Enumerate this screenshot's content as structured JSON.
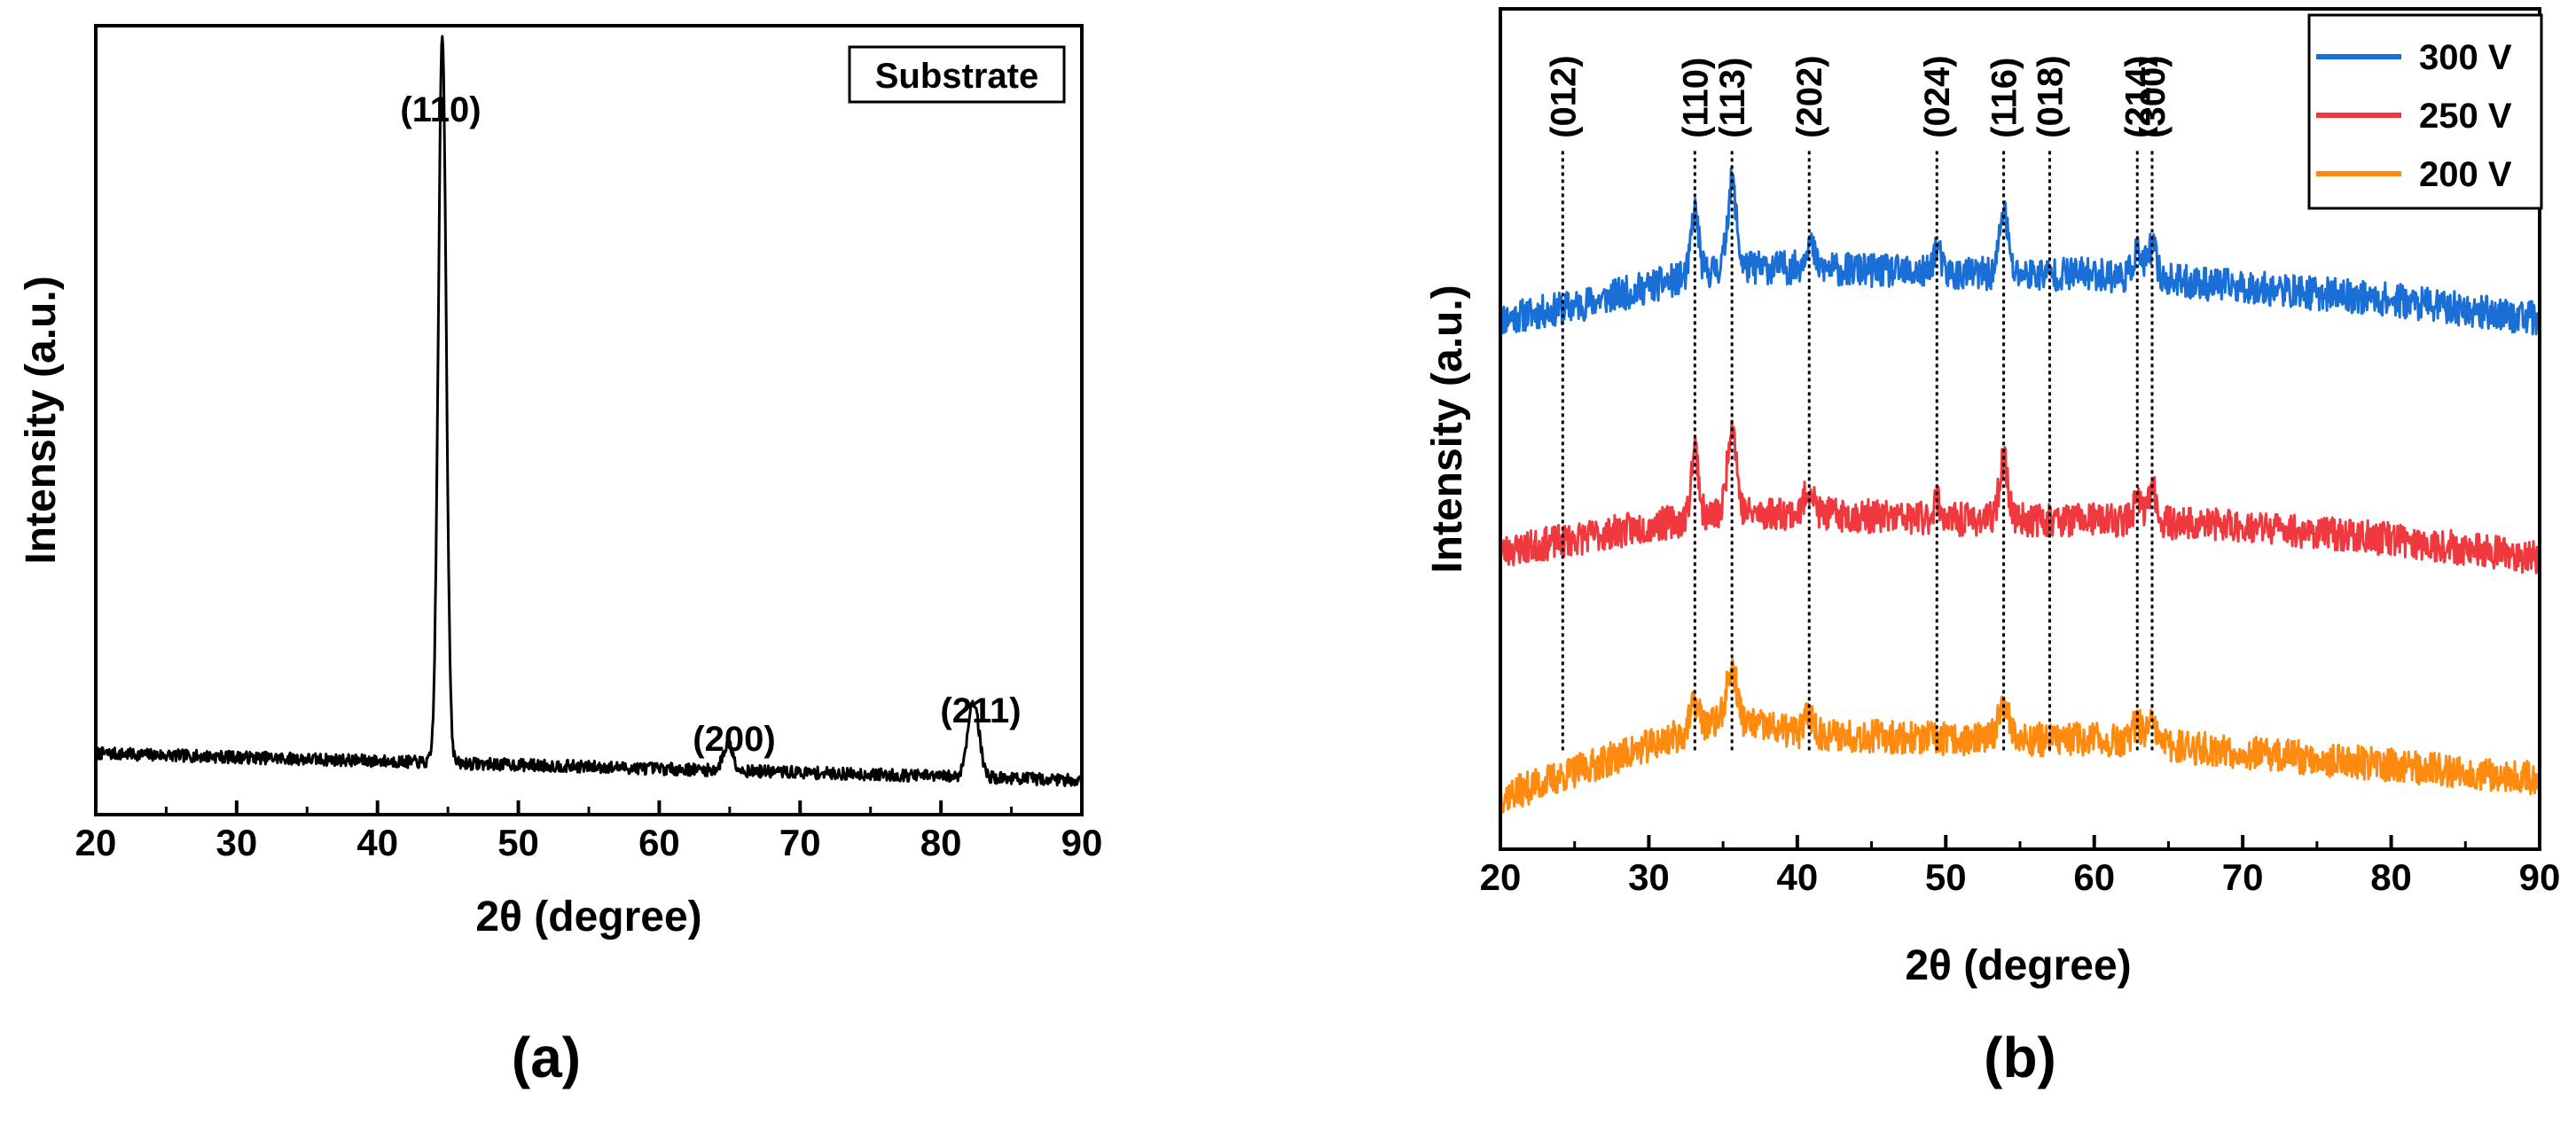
{
  "chart_data": [
    {
      "type": "line",
      "panel_label": "(a)",
      "xlabel": "2θ (degree)",
      "ylabel": "Intensity (a.u.)",
      "xlim": [
        20,
        90
      ],
      "xticks": [
        20,
        30,
        40,
        50,
        60,
        70,
        80,
        90
      ],
      "yticks": [],
      "grid": false,
      "legend": {
        "entries": [
          "Substrate"
        ],
        "position": "top-right"
      },
      "series": [
        {
          "name": "Substrate",
          "color": "#000000",
          "baseline": {
            "x": [
              20,
              30,
              40,
              50,
              60,
              70,
              80,
              90
            ],
            "y": [
              5,
              4.5,
              4,
              3.5,
              3,
              2.5,
              2,
              1.5
            ]
          },
          "noise": 0.8,
          "peaks": [
            {
              "x": 44.6,
              "height": 95,
              "width": 0.28
            },
            {
              "x": 64.9,
              "height": 3.5,
              "width": 0.35
            },
            {
              "x": 82.3,
              "height": 10,
              "width": 0.4
            }
          ],
          "ylim": [
            -3,
            100
          ]
        }
      ],
      "annotations": [
        {
          "text": "(110)",
          "x": 44.6,
          "y": 105
        },
        {
          "text": "(200)",
          "x": 64.9,
          "y": 12
        },
        {
          "text": "(211)",
          "x": 82.3,
          "y": 19
        }
      ]
    },
    {
      "type": "line",
      "panel_label": "(b)",
      "xlabel": "2θ (degree)",
      "ylabel": "Intensity (a.u.)",
      "xlim": [
        20,
        90
      ],
      "xticks": [
        20,
        30,
        40,
        50,
        60,
        70,
        80,
        90
      ],
      "yticks": [],
      "ylim": [
        0,
        130
      ],
      "grid": false,
      "legend": {
        "entries": [
          "300 V",
          "250 V",
          "200 V"
        ],
        "position": "top-right"
      },
      "series": [
        {
          "name": "300 V",
          "color": "#1a6fd6",
          "offset": 82,
          "baseline": {
            "x": [
              20,
              25,
              30,
              35,
              40,
              50,
              60,
              70,
              80,
              90
            ],
            "y": [
              0,
              2,
              5,
              8,
              8,
              7,
              7,
              5,
              3,
              0
            ]
          },
          "noise": 2.6,
          "peaks": [
            {
              "x": 33.1,
              "height": 10,
              "width": 0.25
            },
            {
              "x": 35.6,
              "height": 13,
              "width": 0.3
            },
            {
              "x": 40.8,
              "height": 4,
              "width": 0.3
            },
            {
              "x": 49.4,
              "height": 4,
              "width": 0.25
            },
            {
              "x": 53.9,
              "height": 10,
              "width": 0.28
            },
            {
              "x": 62.9,
              "height": 4,
              "width": 0.3
            },
            {
              "x": 63.9,
              "height": 5,
              "width": 0.3
            }
          ]
        },
        {
          "name": "250 V",
          "color": "#f0393f",
          "offset": 46,
          "baseline": {
            "x": [
              20,
              25,
              30,
              35,
              40,
              50,
              60,
              70,
              80,
              90
            ],
            "y": [
              0,
              2,
              4,
              6,
              6,
              5,
              5,
              4,
              2,
              -1
            ]
          },
          "noise": 2.6,
          "peaks": [
            {
              "x": 33.1,
              "height": 11,
              "width": 0.25
            },
            {
              "x": 35.6,
              "height": 14,
              "width": 0.3
            },
            {
              "x": 40.8,
              "height": 4,
              "width": 0.3
            },
            {
              "x": 49.4,
              "height": 3,
              "width": 0.25
            },
            {
              "x": 53.9,
              "height": 9,
              "width": 0.3
            },
            {
              "x": 62.9,
              "height": 3,
              "width": 0.3
            },
            {
              "x": 63.9,
              "height": 5,
              "width": 0.3
            }
          ]
        },
        {
          "name": "200 V",
          "color": "#ff8a10",
          "offset": 8,
          "baseline": {
            "x": [
              20,
              25,
              30,
              35,
              40,
              50,
              60,
              70,
              80,
              90
            ],
            "y": [
              0,
              4,
              8,
              12,
              10,
              9,
              9,
              7,
              5,
              3
            ]
          },
          "noise": 2.6,
          "peaks": [
            {
              "x": 33.1,
              "height": 4,
              "width": 0.3
            },
            {
              "x": 35.6,
              "height": 8,
              "width": 0.35
            },
            {
              "x": 40.8,
              "height": 3,
              "width": 0.3
            },
            {
              "x": 53.9,
              "height": 6,
              "width": 0.35
            },
            {
              "x": 62.9,
              "height": 3,
              "width": 0.3
            },
            {
              "x": 63.9,
              "height": 3,
              "width": 0.3
            }
          ]
        }
      ],
      "reference_lines": [
        {
          "label": "(012)",
          "x": 24.2
        },
        {
          "label": "(110)",
          "x": 33.1
        },
        {
          "label": "(113)",
          "x": 35.6
        },
        {
          "label": "(202)",
          "x": 40.8
        },
        {
          "label": "(024)",
          "x": 49.4
        },
        {
          "label": "(116)",
          "x": 53.9
        },
        {
          "label": "(018)",
          "x": 57.0
        },
        {
          "label": "(214)",
          "x": 62.9
        },
        {
          "label": "(300)",
          "x": 63.9
        }
      ]
    }
  ]
}
